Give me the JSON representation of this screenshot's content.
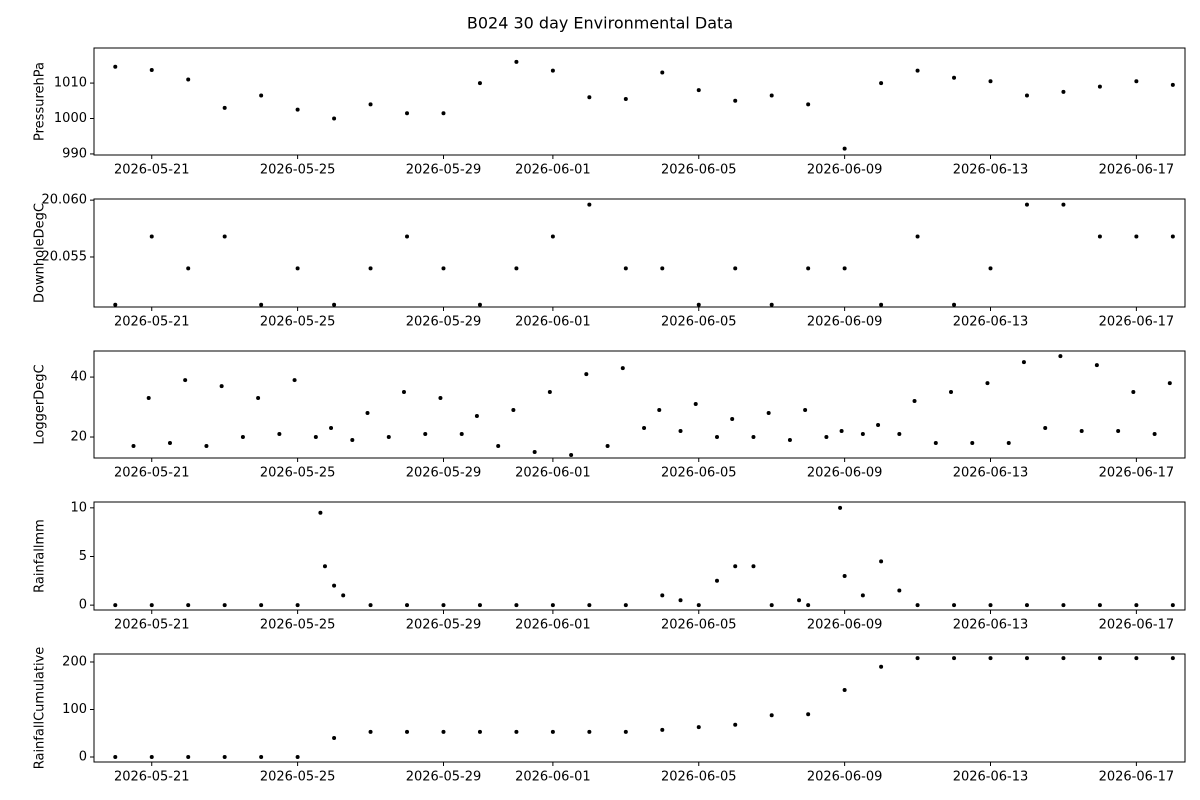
{
  "title": "B024 30 day Environmental Data",
  "chart_data": [
    {
      "type": "scatter",
      "ylabel": "PressurehPa",
      "x": [
        "2026-05-20",
        "2026-05-21",
        "2026-05-22",
        "2026-05-23",
        "2026-05-24",
        "2026-05-25",
        "2026-05-26",
        "2026-05-27",
        "2026-05-28",
        "2026-05-29",
        "2026-05-30",
        "2026-05-31",
        "2026-06-01",
        "2026-06-02",
        "2026-06-03",
        "2026-06-04",
        "2026-06-05",
        "2026-06-06",
        "2026-06-07",
        "2026-06-08",
        "2026-06-09",
        "2026-06-10",
        "2026-06-11",
        "2026-06-12",
        "2026-06-13",
        "2026-06-14",
        "2026-06-15",
        "2026-06-16",
        "2026-06-17",
        "2026-06-18"
      ],
      "values": [
        1014.6,
        1013.7,
        1011,
        1003,
        1006.5,
        1002.5,
        1000,
        1004,
        1001.5,
        1001.5,
        1010,
        1016,
        1013.5,
        1006,
        1005.5,
        1013,
        1008,
        1005,
        1006.5,
        1004,
        991.5,
        1010,
        1013.5,
        1011.5,
        1010.5,
        1006.5,
        1007.5,
        1009,
        1010.5,
        1009.5
      ],
      "xlim": [
        "2026-05-19 10:00",
        "2026-06-18 08:00"
      ],
      "xticks": [
        "2026-05-21",
        "2026-05-25",
        "2026-05-29",
        "2026-06-01",
        "2026-06-05",
        "2026-06-09",
        "2026-06-13",
        "2026-06-17"
      ],
      "ylim": [
        989.7,
        1019.9
      ],
      "yticks": [
        990,
        1000,
        1010
      ],
      "color": "#000000"
    },
    {
      "type": "scatter",
      "ylabel": "DownholeDegC",
      "x": [
        "2026-05-20",
        "2026-05-21",
        "2026-05-22",
        "2026-05-23",
        "2026-05-24",
        "2026-05-25",
        "2026-05-26",
        "2026-05-27",
        "2026-05-28",
        "2026-05-29",
        "2026-05-30",
        "2026-05-31",
        "2026-06-01",
        "2026-06-02",
        "2026-06-03",
        "2026-06-04",
        "2026-06-05",
        "2026-06-06",
        "2026-06-07",
        "2026-06-08",
        "2026-06-09",
        "2026-06-10",
        "2026-06-11",
        "2026-06-12",
        "2026-06-13",
        "2026-06-14",
        "2026-06-15",
        "2026-06-16",
        "2026-06-17",
        "2026-06-18"
      ],
      "values": [
        20.0508,
        20.0568,
        20.054,
        20.0568,
        20.0508,
        20.054,
        20.0508,
        20.054,
        20.0568,
        20.054,
        20.0508,
        20.054,
        20.0568,
        20.0596,
        20.054,
        20.054,
        20.0508,
        20.054,
        20.0508,
        20.054,
        20.054,
        20.0508,
        20.0568,
        20.0508,
        20.054,
        20.0596,
        20.0596,
        20.0568,
        20.0568,
        20.0568
      ],
      "xlim": [
        "2026-05-19 10:00",
        "2026-06-18 08:00"
      ],
      "xticks": [
        "2026-05-21",
        "2026-05-25",
        "2026-05-29",
        "2026-06-01",
        "2026-06-05",
        "2026-06-09",
        "2026-06-13",
        "2026-06-17"
      ],
      "ylim": [
        20.0506,
        20.0601
      ],
      "yticks": [
        20.055,
        {
          "value": 20.06,
          "label": "20.060"
        }
      ],
      "color": "#000000"
    },
    {
      "type": "scatter",
      "ylabel": "LoggerDegC",
      "x": [
        "2026-05-20 12:00",
        "2026-05-20 22:00",
        "2026-05-21 12:00",
        "2026-05-21 22:00",
        "2026-05-22 12:00",
        "2026-05-22 22:00",
        "2026-05-23 12:00",
        "2026-05-23 22:00",
        "2026-05-24 12:00",
        "2026-05-24 22:00",
        "2026-05-25 12:00",
        "2026-05-25 22:00",
        "2026-05-26 12:00",
        "2026-05-26 22:00",
        "2026-05-27 12:00",
        "2026-05-27 22:00",
        "2026-05-28 12:00",
        "2026-05-28 22:00",
        "2026-05-29 12:00",
        "2026-05-29 22:00",
        "2026-05-30 12:00",
        "2026-05-30 22:00",
        "2026-05-31 12:00",
        "2026-05-31 22:00",
        "2026-06-01 12:00",
        "2026-06-01 22:00",
        "2026-06-02 12:00",
        "2026-06-02 22:00",
        "2026-06-03 12:00",
        "2026-06-03 22:00",
        "2026-06-04 12:00",
        "2026-06-04 22:00",
        "2026-06-05 12:00",
        "2026-06-05 22:00",
        "2026-06-06 12:00",
        "2026-06-06 22:00",
        "2026-06-07 12:00",
        "2026-06-07 22:00",
        "2026-06-08 12:00",
        "2026-06-08 22:00",
        "2026-06-09 12:00",
        "2026-06-09 22:00",
        "2026-06-10 12:00",
        "2026-06-10 22:00",
        "2026-06-11 12:00",
        "2026-06-11 22:00",
        "2026-06-12 12:00",
        "2026-06-12 22:00",
        "2026-06-13 12:00",
        "2026-06-13 22:00",
        "2026-06-14 12:00",
        "2026-06-14 22:00",
        "2026-06-15 12:00",
        "2026-06-15 22:00",
        "2026-06-16 12:00",
        "2026-06-16 22:00",
        "2026-06-17 12:00",
        "2026-06-17 22:00"
      ],
      "values": [
        17,
        33,
        18,
        39,
        17,
        37,
        20,
        33,
        21,
        39,
        20,
        23,
        19,
        28,
        20,
        35,
        21,
        33,
        21,
        27,
        17,
        29,
        15,
        35,
        14,
        41,
        17,
        43,
        23,
        29,
        22,
        31,
        20,
        26,
        20,
        28,
        19,
        29,
        20,
        22,
        21,
        24,
        21,
        32,
        18,
        35,
        18,
        38,
        18,
        45,
        23,
        47,
        22,
        44,
        22,
        35,
        21,
        38
      ],
      "xlim": [
        "2026-05-19 10:00",
        "2026-06-18 08:00"
      ],
      "xticks": [
        "2026-05-21",
        "2026-05-25",
        "2026-05-29",
        "2026-06-01",
        "2026-06-05",
        "2026-06-09",
        "2026-06-13",
        "2026-06-17"
      ],
      "ylim": [
        13,
        48.7
      ],
      "yticks": [
        20,
        40
      ],
      "color": "#000000"
    },
    {
      "type": "scatter",
      "ylabel": "Rainfallmm",
      "x": [
        "2026-05-20",
        "2026-05-21",
        "2026-05-22",
        "2026-05-23",
        "2026-05-24",
        "2026-05-25",
        "2026-05-25 15:00",
        "2026-05-25 18:00",
        "2026-05-26",
        "2026-05-26 06:00",
        "2026-05-27",
        "2026-05-28",
        "2026-05-29",
        "2026-05-30",
        "2026-05-31",
        "2026-06-01",
        "2026-06-02",
        "2026-06-03",
        "2026-06-04",
        "2026-06-04 12:00",
        "2026-06-05",
        "2026-06-05 12:00",
        "2026-06-06",
        "2026-06-06 12:00",
        "2026-06-07",
        "2026-06-07 18:00",
        "2026-06-08",
        "2026-06-08 21:00",
        "2026-06-09",
        "2026-06-09 12:00",
        "2026-06-10",
        "2026-06-10 12:00",
        "2026-06-11",
        "2026-06-12",
        "2026-06-13",
        "2026-06-14",
        "2026-06-15",
        "2026-06-16",
        "2026-06-17",
        "2026-06-18"
      ],
      "values": [
        0,
        0,
        0,
        0,
        0,
        0,
        9.5,
        4,
        2,
        1,
        0,
        0,
        0,
        0,
        0,
        0,
        0,
        0,
        1,
        0.5,
        0,
        2.5,
        4,
        4,
        0,
        0.5,
        0,
        10,
        3,
        1,
        4.5,
        1.5,
        0,
        0,
        0,
        0,
        0,
        0,
        0,
        0
      ],
      "xlim": [
        "2026-05-19 10:00",
        "2026-06-18 08:00"
      ],
      "xticks": [
        "2026-05-21",
        "2026-05-25",
        "2026-05-29",
        "2026-06-01",
        "2026-06-05",
        "2026-06-09",
        "2026-06-13",
        "2026-06-17"
      ],
      "ylim": [
        -0.5,
        10.6
      ],
      "yticks": [
        0,
        5,
        10
      ],
      "color": "#000000"
    },
    {
      "type": "scatter",
      "ylabel": "RainfallCumulative",
      "x": [
        "2026-05-20",
        "2026-05-21",
        "2026-05-22",
        "2026-05-23",
        "2026-05-24",
        "2026-05-25",
        "2026-05-26",
        "2026-05-27",
        "2026-05-28",
        "2026-05-29",
        "2026-05-30",
        "2026-05-31",
        "2026-06-01",
        "2026-06-02",
        "2026-06-03",
        "2026-06-04",
        "2026-06-05",
        "2026-06-06",
        "2026-06-07",
        "2026-06-08",
        "2026-06-09",
        "2026-06-10",
        "2026-06-11",
        "2026-06-12",
        "2026-06-13",
        "2026-06-14",
        "2026-06-15",
        "2026-06-16",
        "2026-06-17",
        "2026-06-18"
      ],
      "values": [
        0,
        0,
        0,
        0,
        0,
        0,
        40,
        53,
        53,
        53,
        53,
        53,
        53,
        53,
        53,
        57,
        63,
        68,
        88,
        90,
        141,
        190,
        208,
        208,
        208,
        208,
        208,
        208,
        208,
        208
      ],
      "xlim": [
        "2026-05-19 10:00",
        "2026-06-18 08:00"
      ],
      "xticks": [
        "2026-05-21",
        "2026-05-25",
        "2026-05-29",
        "2026-06-01",
        "2026-06-05",
        "2026-06-09",
        "2026-06-13",
        "2026-06-17"
      ],
      "ylim": [
        -10.5,
        216.8
      ],
      "yticks": [
        0,
        100,
        200
      ],
      "color": "#000000"
    }
  ]
}
